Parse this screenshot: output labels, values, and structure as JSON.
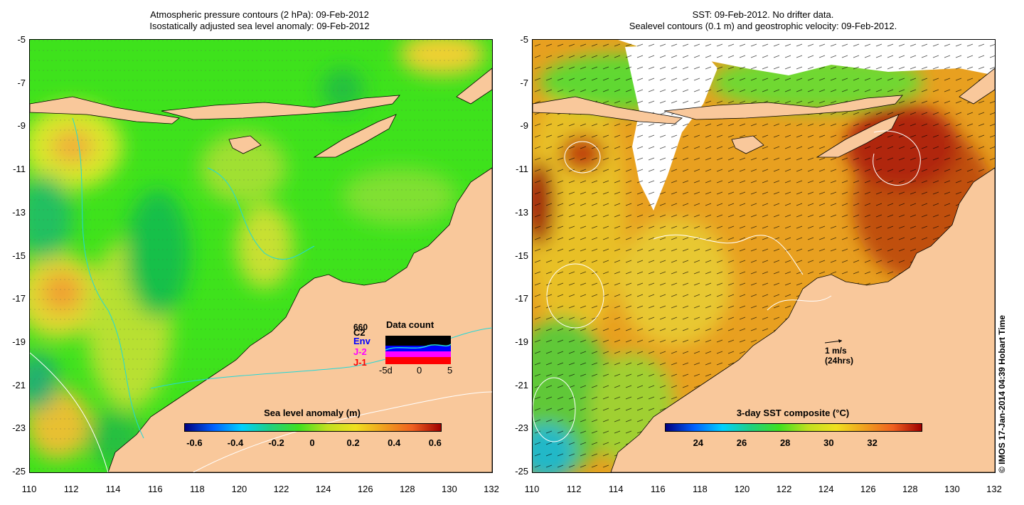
{
  "left_panel": {
    "title_line1": "Atmospheric pressure contours (2 hPa): 09-Feb-2012",
    "title_line2": "Isostatically adjusted sea level anomaly: 09-Feb-2012",
    "colorbar": {
      "title": "Sea level anomaly (m)",
      "ticks": [
        "-0.6",
        "-0.4",
        "-0.2",
        "0",
        "0.2",
        "0.4",
        "0.6"
      ]
    },
    "inset": {
      "title": "Data count",
      "legend": [
        "C2",
        "Env",
        "J-2",
        "J-1"
      ],
      "legend_overlap": "660",
      "axis": [
        "-5d",
        "0",
        "5"
      ],
      "colors": {
        "C2": "#000000",
        "Env": "#0000ff",
        "J-2": "#ff00ff",
        "J-1": "#ff0000"
      }
    }
  },
  "right_panel": {
    "title_line1": "SST: 09-Feb-2012. No drifter data.",
    "title_line2": "Sealevel contours (0.1 m) and geostrophic velocity: 09-Feb-2012.",
    "colorbar": {
      "title": "3-day SST composite (°C)",
      "ticks": [
        "24",
        "26",
        "28",
        "30",
        "32"
      ]
    },
    "velocity_scale": {
      "line1": "1 m/s",
      "line2": "(24hrs)"
    }
  },
  "axes": {
    "y_ticks": [
      "-5",
      "-7",
      "-9",
      "-11",
      "-13",
      "-15",
      "-17",
      "-19",
      "-21",
      "-23",
      "-25"
    ],
    "x_ticks": [
      "110",
      "112",
      "114",
      "116",
      "118",
      "120",
      "122",
      "124",
      "126",
      "128",
      "130",
      "132"
    ]
  },
  "copyright": "© IMOS 17-Jan-2014 04:39 Hobart Time",
  "colors": {
    "land": "#f9c89b",
    "sea_green": "#2ee01a",
    "sst_orange": "#e8951e"
  }
}
